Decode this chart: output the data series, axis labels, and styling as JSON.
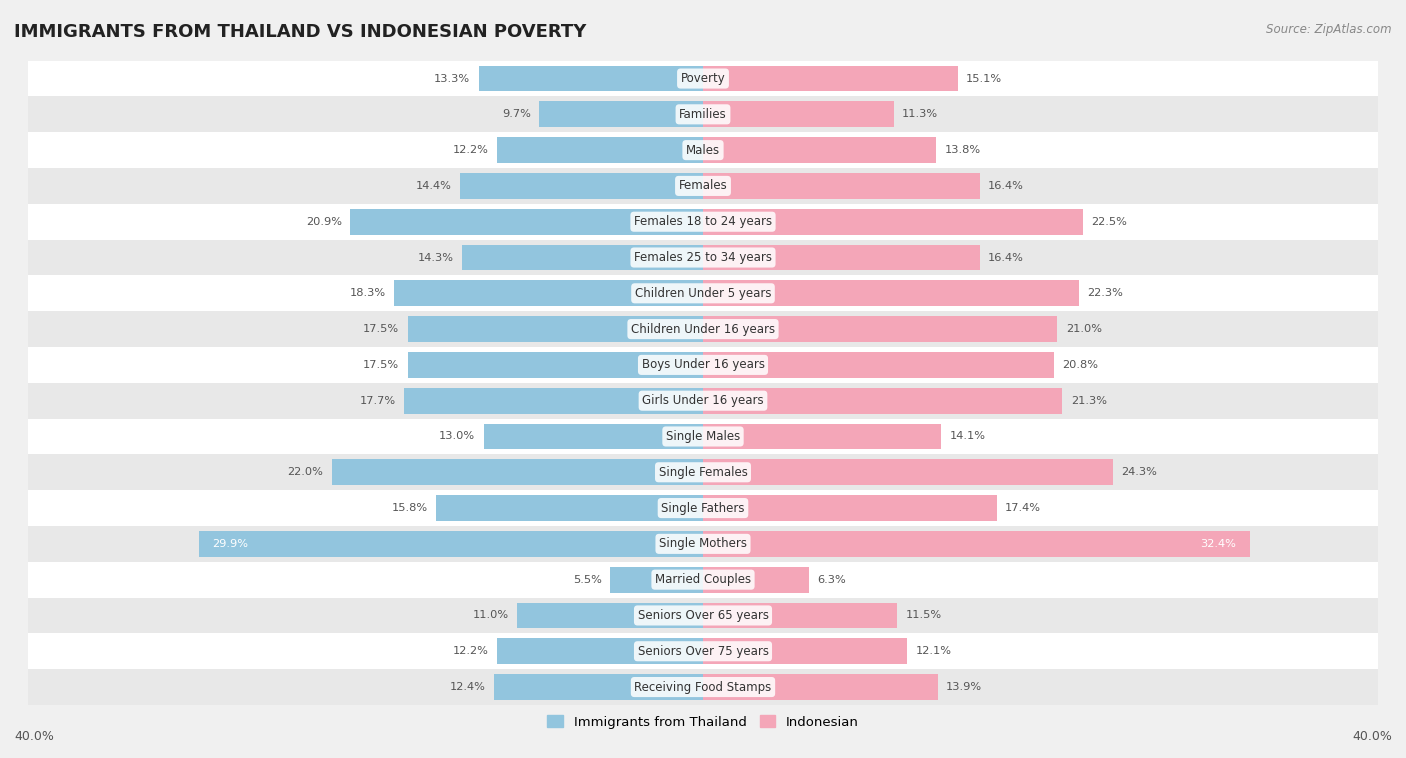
{
  "title": "IMMIGRANTS FROM THAILAND VS INDONESIAN POVERTY",
  "source": "Source: ZipAtlas.com",
  "categories": [
    "Poverty",
    "Families",
    "Males",
    "Females",
    "Females 18 to 24 years",
    "Females 25 to 34 years",
    "Children Under 5 years",
    "Children Under 16 years",
    "Boys Under 16 years",
    "Girls Under 16 years",
    "Single Males",
    "Single Females",
    "Single Fathers",
    "Single Mothers",
    "Married Couples",
    "Seniors Over 65 years",
    "Seniors Over 75 years",
    "Receiving Food Stamps"
  ],
  "thailand_values": [
    13.3,
    9.7,
    12.2,
    14.4,
    20.9,
    14.3,
    18.3,
    17.5,
    17.5,
    17.7,
    13.0,
    22.0,
    15.8,
    29.9,
    5.5,
    11.0,
    12.2,
    12.4
  ],
  "indonesian_values": [
    15.1,
    11.3,
    13.8,
    16.4,
    22.5,
    16.4,
    22.3,
    21.0,
    20.8,
    21.3,
    14.1,
    24.3,
    17.4,
    32.4,
    6.3,
    11.5,
    12.1,
    13.9
  ],
  "thailand_color": "#92c5de",
  "indonesian_color": "#f4a6b8",
  "label_thailand": "Immigrants from Thailand",
  "label_indonesian": "Indonesian",
  "axis_limit": 40.0,
  "bar_height": 0.72,
  "background_color": "#f0f0f0",
  "row_bg_colors": [
    "#ffffff",
    "#e8e8e8"
  ],
  "title_fontsize": 13,
  "label_fontsize": 8.5,
  "value_fontsize": 8.2
}
